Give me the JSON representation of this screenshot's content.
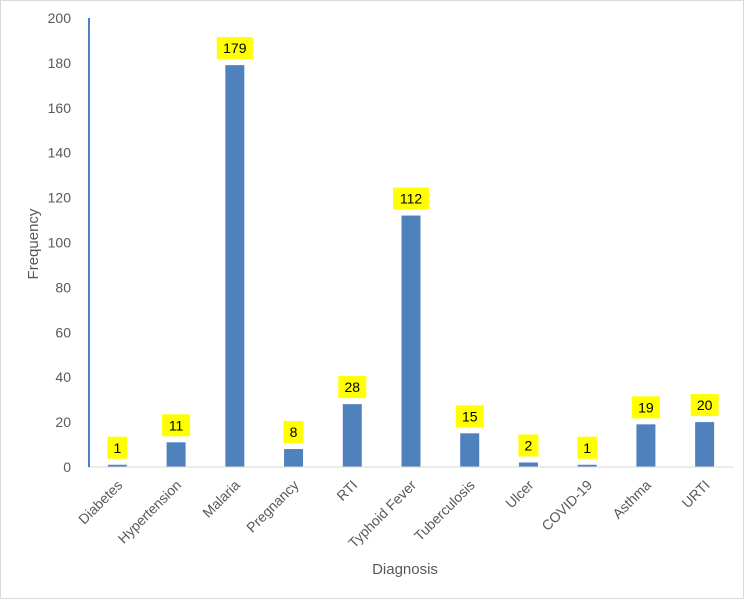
{
  "chart_data": {
    "type": "bar",
    "title": "",
    "xlabel": "Diagnosis",
    "ylabel": "Frequency",
    "ylim": [
      0,
      200
    ],
    "yticks": [
      0,
      20,
      40,
      60,
      80,
      100,
      120,
      140,
      160,
      180,
      200
    ],
    "categories": [
      "Diabetes",
      "Hypertension",
      "Malaria",
      "Pregnancy",
      "RTI",
      "Typhoid Fever",
      "Tuberculosis",
      "Ulcer",
      "COVID-19",
      "Asthma",
      "URTI"
    ],
    "series": [
      {
        "values": [
          1,
          11,
          179,
          8,
          28,
          112,
          15,
          2,
          1,
          19,
          20
        ]
      }
    ],
    "grid": false,
    "legend": "none",
    "data_labels": true,
    "colors": {
      "bar": "#4f81bd",
      "label_bg": "#ffff00",
      "axis": "#4f81bd",
      "text": "#595959"
    }
  }
}
